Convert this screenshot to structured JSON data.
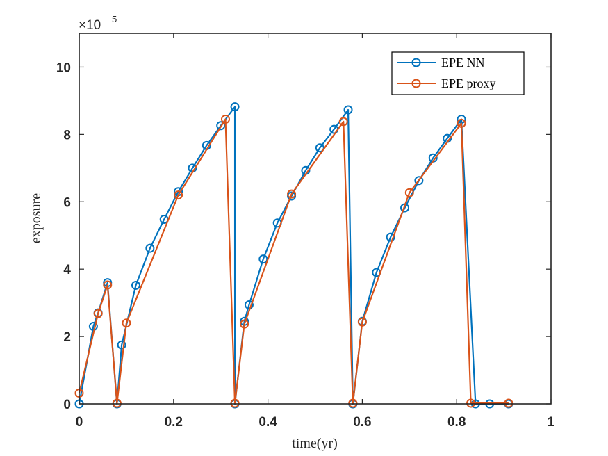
{
  "chart_data": {
    "type": "line",
    "title": "",
    "xlabel": "time(yr)",
    "ylabel": "exposure",
    "xlim": [
      0,
      1
    ],
    "ylim": [
      0,
      1100000
    ],
    "xticks": [
      0,
      0.2,
      0.4,
      0.6,
      0.8,
      1
    ],
    "yticks": [
      0,
      200000,
      400000,
      600000,
      800000,
      1000000
    ],
    "xtick_labels": [
      "0",
      "0.2",
      "0.4",
      "0.6",
      "0.8",
      "1"
    ],
    "ytick_labels": [
      "0",
      "2",
      "4",
      "6",
      "8",
      "10"
    ],
    "y_multiplier": {
      "base": "×10",
      "exponent": "5"
    },
    "legend_position": "top-right",
    "grid": false,
    "series": [
      {
        "name": "EPE NN",
        "color": "#0072BD",
        "marker": "circle",
        "x": [
          0,
          0.03,
          0.04,
          0.06,
          0.08,
          0.09,
          0.12,
          0.15,
          0.18,
          0.21,
          0.24,
          0.27,
          0.3,
          0.33,
          0.33,
          0.35,
          0.36,
          0.39,
          0.42,
          0.45,
          0.48,
          0.51,
          0.54,
          0.57,
          0.58,
          0.58,
          0.6,
          0.63,
          0.66,
          0.69,
          0.72,
          0.75,
          0.78,
          0.81,
          0.84,
          0.87,
          0.91
        ],
        "values": [
          0,
          230000,
          270000,
          360000,
          0,
          175000,
          352000,
          462000,
          548000,
          630000,
          700000,
          767000,
          826000,
          882000,
          0,
          245000,
          294000,
          430000,
          537000,
          617000,
          693000,
          760000,
          815000,
          873000,
          0,
          0,
          245000,
          390000,
          495000,
          582000,
          663000,
          730000,
          788000,
          845000,
          0,
          0,
          0
        ]
      },
      {
        "name": "EPE proxy",
        "color": "#D95319",
        "marker": "circle",
        "x": [
          0,
          0.04,
          0.06,
          0.08,
          0.1,
          0.21,
          0.31,
          0.33,
          0.35,
          0.45,
          0.56,
          0.58,
          0.6,
          0.7,
          0.81,
          0.83,
          0.91
        ],
        "values": [
          32000,
          268000,
          353000,
          2000,
          240000,
          620000,
          845000,
          2000,
          237000,
          623000,
          838000,
          2000,
          243000,
          627000,
          833000,
          2000,
          2000
        ]
      }
    ]
  }
}
